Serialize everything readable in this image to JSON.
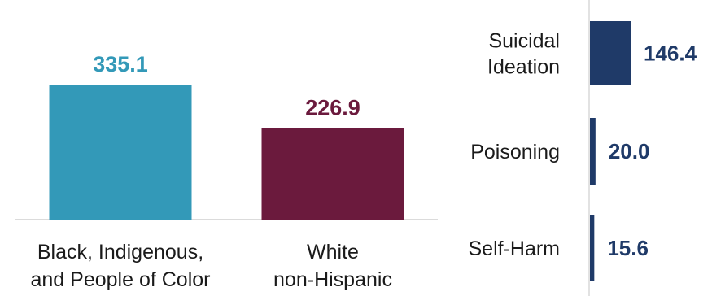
{
  "chart_data": [
    {
      "type": "bar",
      "categories": [
        [
          "Black, Indigenous,",
          "and People of Color"
        ],
        [
          "White",
          "non-Hispanic"
        ]
      ],
      "values": [
        335.1,
        226.9
      ],
      "value_labels": [
        "335.1",
        "226.9"
      ],
      "colors": [
        "#3399b8",
        "#6b1a3d"
      ],
      "ylim": [
        0,
        380
      ],
      "grid": false
    },
    {
      "type": "bar",
      "orientation": "horizontal",
      "categories": [
        [
          "Suicidal",
          "Ideation"
        ],
        [
          "Poisoning"
        ],
        [
          "Self-Harm"
        ]
      ],
      "values": [
        146.4,
        20.0,
        15.6
      ],
      "value_labels": [
        "146.4",
        "20.0",
        "15.6"
      ],
      "color": "#1f3a68",
      "grid": false
    }
  ]
}
